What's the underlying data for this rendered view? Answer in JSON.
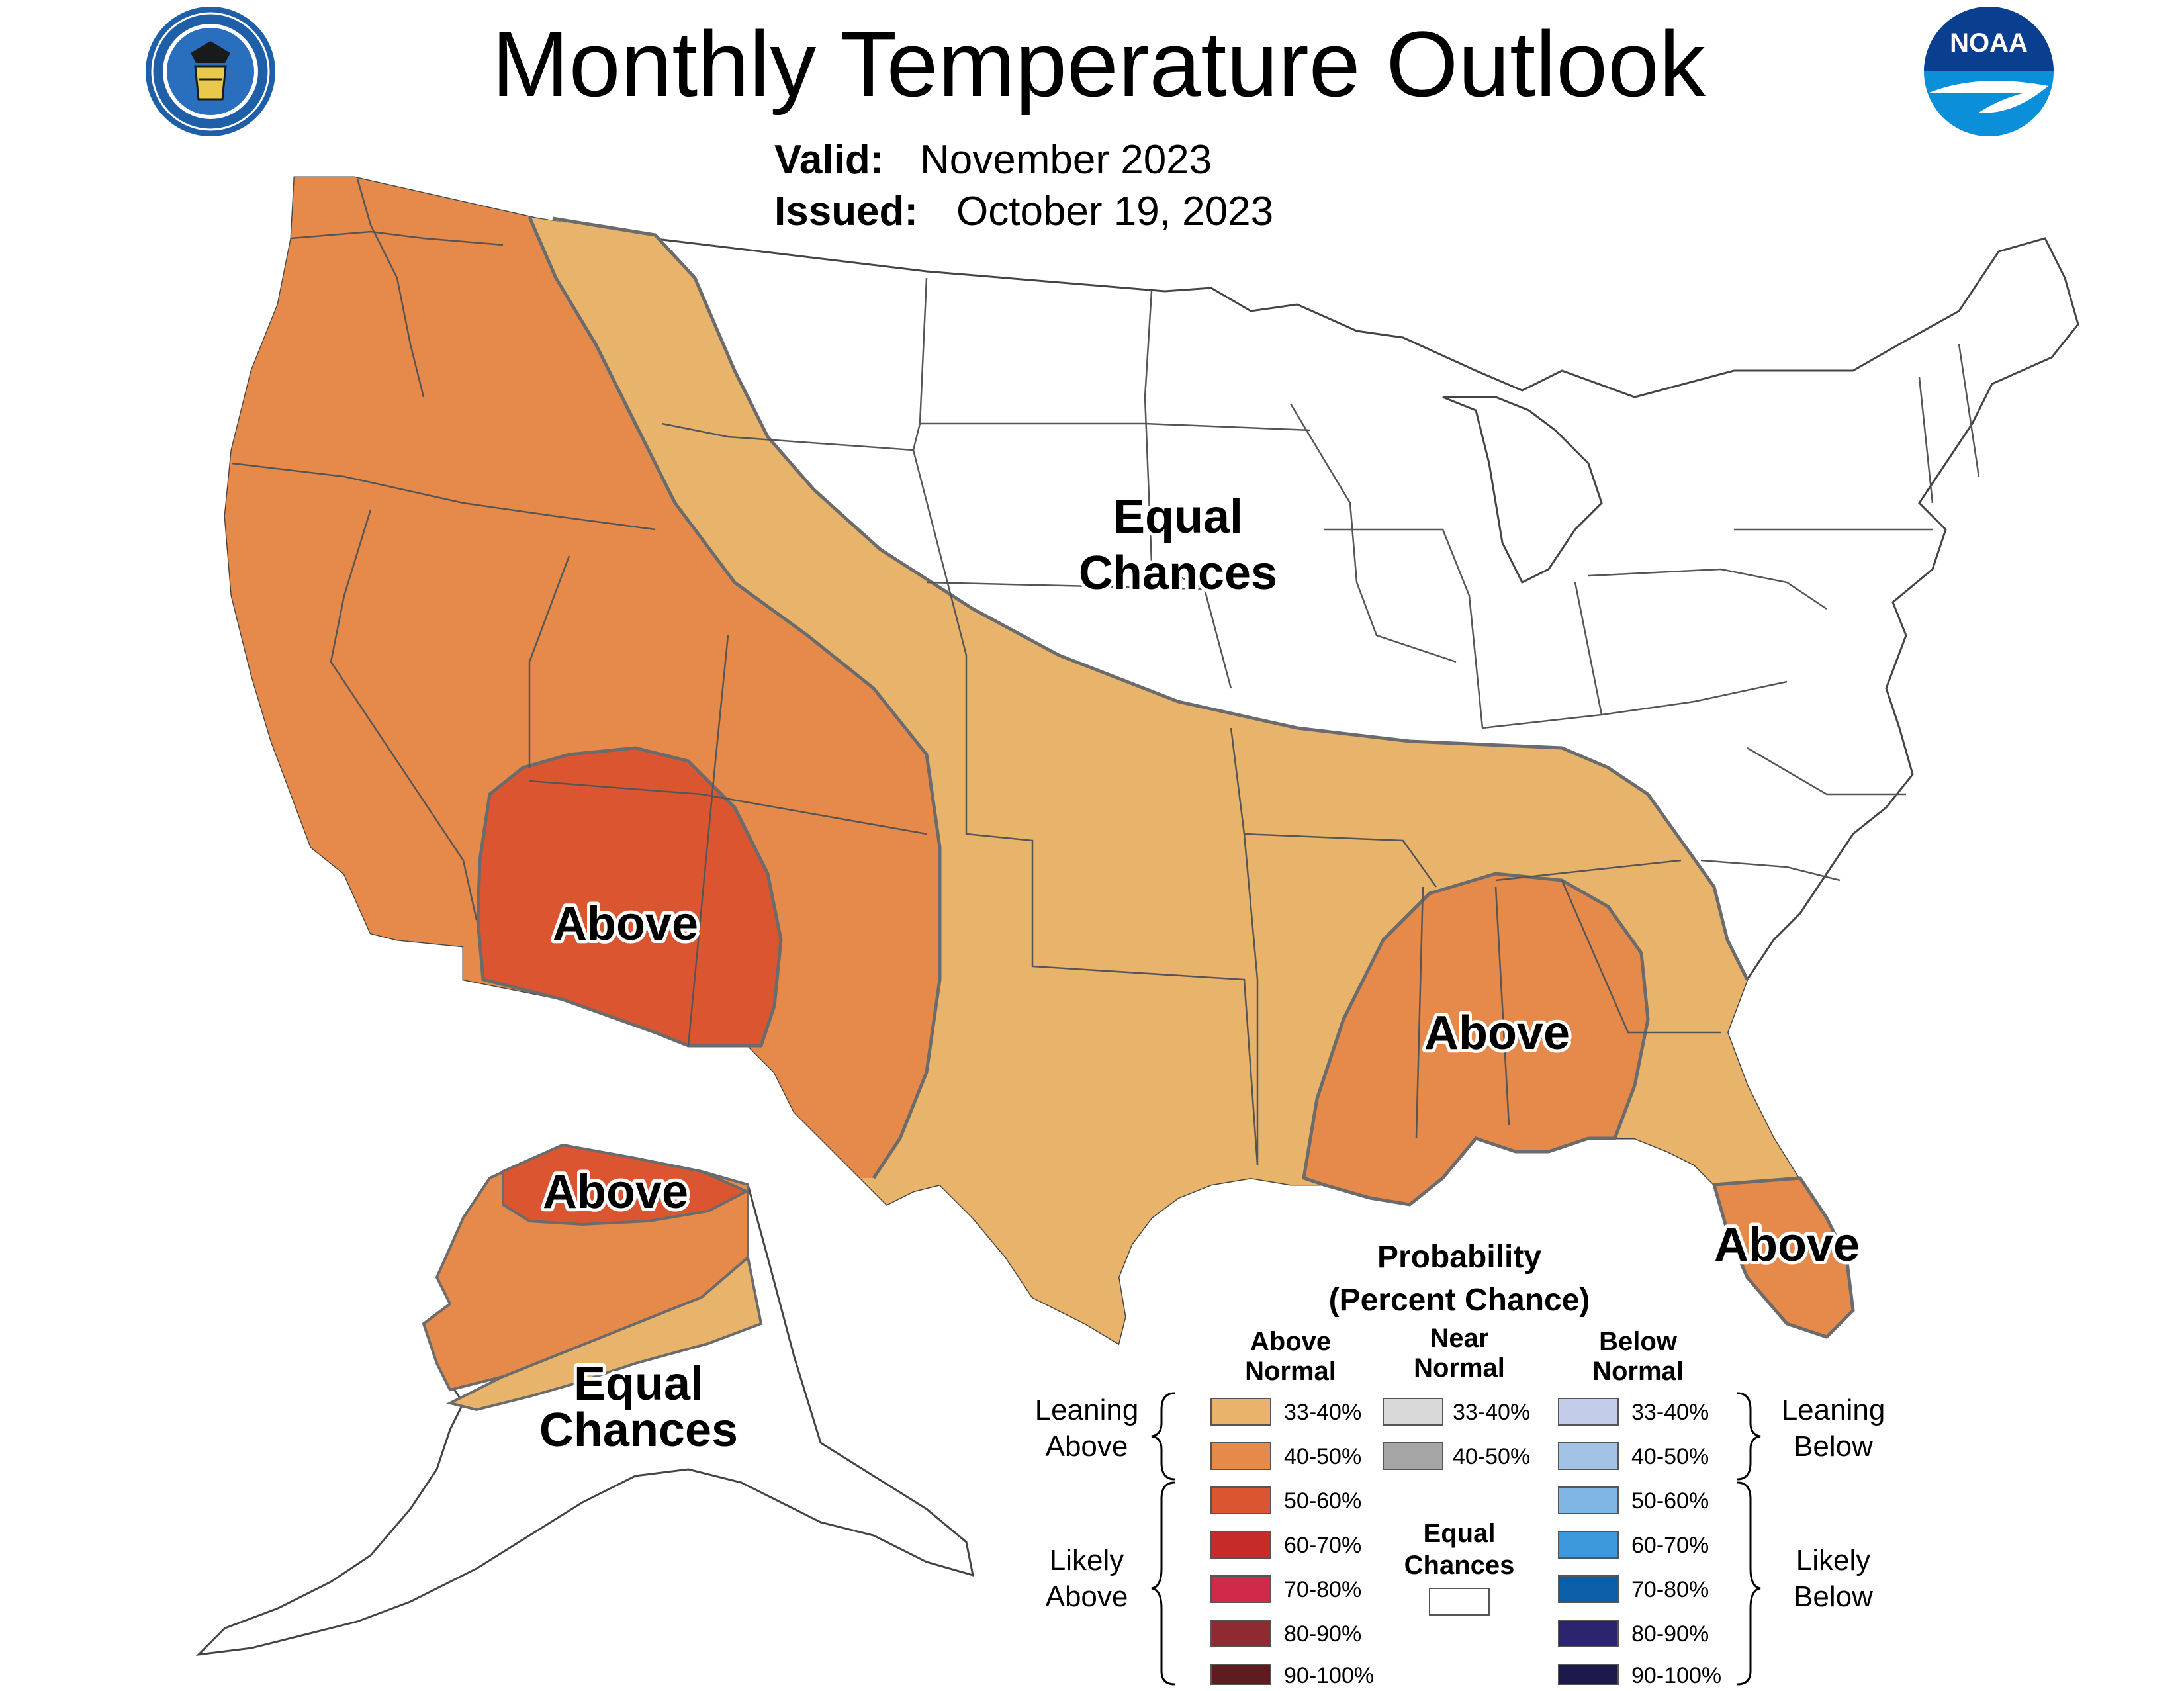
{
  "header": {
    "title": "Monthly Temperature Outlook",
    "valid_label": "Valid:",
    "valid_value": "November 2023",
    "issued_label": "Issued:",
    "issued_value": "October 19, 2023"
  },
  "logos": {
    "left": {
      "icon": "department-of-commerce-seal",
      "text": "DEPARTMENT OF COMMERCE · UNITED STATES OF AMERICA"
    },
    "right": {
      "icon": "noaa-logo",
      "text": "NOAA"
    }
  },
  "map_labels": {
    "equal_line1": "Equal",
    "equal_line2": "Chances",
    "above_sw": "Above",
    "above_se": "Above",
    "above_fl": "Above",
    "above_ak": "Above",
    "ak_equal_line1": "Equal",
    "ak_equal_line2": "Chances"
  },
  "colors": {
    "lean_above": "#e8b46c",
    "above_40_50": "#e58a4b",
    "above_50_60": "#db5630",
    "above_60_70": "#c72b27",
    "above_70_80": "#d1294a",
    "above_80_90": "#8f2a32",
    "above_90_100": "#5e1c1f",
    "near_33_40": "#d9d9d9",
    "near_40_50": "#a6a6a6",
    "below_33_40": "#c3cde9",
    "below_40_50": "#a3c3e6",
    "below_50_60": "#7fb6e3",
    "below_60_70": "#3d99dc",
    "below_70_80": "#0b5fa8",
    "below_80_90": "#2d2470",
    "below_90_100": "#1c1a4a",
    "equal": "#ffffff"
  },
  "legend": {
    "title_line1": "Probability",
    "title_line2": "(Percent Chance)",
    "col_above_1": "Above",
    "col_above_2": "Normal",
    "col_near_1": "Near",
    "col_near_2": "Normal",
    "col_below_1": "Below",
    "col_below_2": "Normal",
    "leaning_above_1": "Leaning",
    "leaning_above_2": "Above",
    "likely_above_1": "Likely",
    "likely_above_2": "Above",
    "leaning_below_1": "Leaning",
    "leaning_below_2": "Below",
    "likely_below_1": "Likely",
    "likely_below_2": "Below",
    "equal_1": "Equal",
    "equal_2": "Chances",
    "above": [
      "33-40%",
      "40-50%",
      "50-60%",
      "60-70%",
      "70-80%",
      "80-90%",
      "90-100%"
    ],
    "near": [
      "33-40%",
      "40-50%"
    ],
    "below": [
      "33-40%",
      "40-50%",
      "50-60%",
      "60-70%",
      "70-80%",
      "80-90%",
      "90-100%"
    ]
  }
}
